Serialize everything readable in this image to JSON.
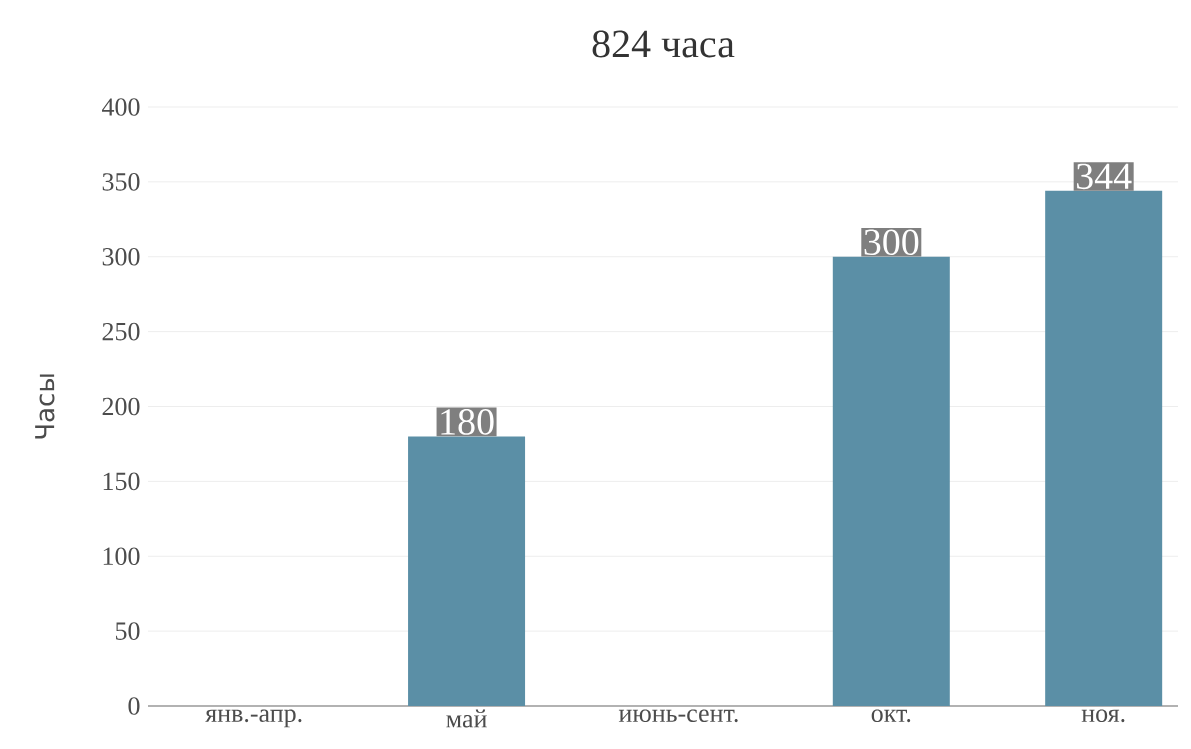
{
  "chart_data": {
    "type": "bar",
    "title": "824 часа",
    "ylabel": "Часы",
    "categories": [
      "янв.-апр.",
      "май",
      "июнь-сент.",
      "окт.",
      "ноя."
    ],
    "values": [
      null,
      180,
      null,
      300,
      344
    ],
    "color": "#5b8fa6",
    "ylim": [
      0,
      400
    ],
    "yticks": [
      0,
      50,
      100,
      150,
      200,
      250,
      300,
      350,
      400
    ],
    "grid": "y",
    "data_labels": true
  }
}
